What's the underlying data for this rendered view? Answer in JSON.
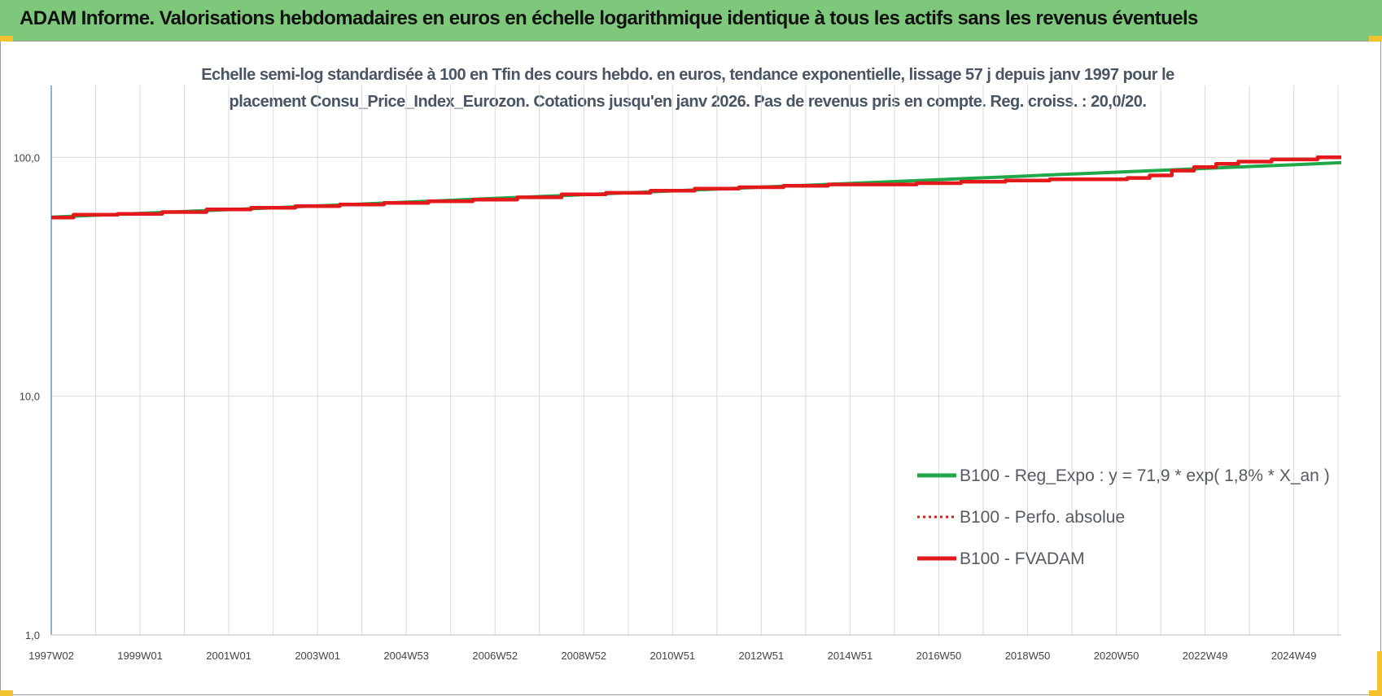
{
  "header": {
    "title": "ADAM Informe. Valorisations hebdomadaires en euros en échelle logarithmique identique à tous les actifs sans les revenus éventuels"
  },
  "chart_data": {
    "type": "line",
    "title_line1": "Echelle semi-log standardisée à 100 en Tfin des cours hebdo. en euros, tendance exponentielle, lissage 57 j depuis janv 1997 pour le",
    "title_line2": "placement Consu_Price_Index_Eurozon. Cotations jusqu'en janv 2026. Pas de revenus pris en compte. Reg. croiss. : 20,0/20.",
    "y_scale": "log",
    "ylim": [
      1,
      200
    ],
    "y_ticks": [
      1,
      10,
      100
    ],
    "y_tick_labels": [
      "1,0",
      "10,0",
      "100,0"
    ],
    "xlim": [
      1997.0,
      2026.07
    ],
    "x_tick_labels": [
      "1997W02",
      "1999W01",
      "2001W01",
      "2003W01",
      "2004W53",
      "2006W52",
      "2008W52",
      "2010W51",
      "2012W51",
      "2014W51",
      "2016W50",
      "2018W50",
      "2020W50",
      "2022W49",
      "2024W49"
    ],
    "x_tick_years": [
      1997.0,
      1999.0,
      2001.0,
      2003.0,
      2005.0,
      2007.0,
      2009.0,
      2011.0,
      2013.0,
      2015.0,
      2017.0,
      2019.0,
      2021.0,
      2023.0,
      2025.0
    ],
    "grid": true,
    "legend_position": "bottom-right",
    "series": [
      {
        "name": "B100 - Reg_Expo : y = 71,9 * exp( 1,8% *  X_an )",
        "color": "#1fa84a",
        "style": "solid",
        "x": [
          1997.0,
          2026.07
        ],
        "y": [
          56.2,
          95.0
        ]
      },
      {
        "name": "B100 - Perfo. absolue",
        "color": "#e31a1c",
        "style": "dotted",
        "x": [],
        "y": []
      },
      {
        "name": "B100 - FVADAM",
        "color": "#e31a1c",
        "style": "solid",
        "x": [
          1997.0,
          1998.0,
          1999.0,
          2000.0,
          2001.0,
          2002.0,
          2003.0,
          2004.0,
          2005.0,
          2006.0,
          2007.0,
          2008.0,
          2009.0,
          2010.0,
          2011.0,
          2012.0,
          2013.0,
          2014.0,
          2015.0,
          2016.0,
          2017.0,
          2018.0,
          2019.0,
          2020.0,
          2021.0,
          2021.5,
          2022.0,
          2022.5,
          2023.0,
          2023.5,
          2024.0,
          2025.0,
          2026.07
        ],
        "y": [
          56.0,
          57.5,
          58.0,
          59.0,
          60.5,
          61.5,
          62.5,
          63.5,
          64.5,
          65.5,
          66.5,
          68.0,
          70.0,
          71.0,
          72.5,
          74.0,
          75.0,
          76.0,
          77.0,
          77.0,
          78.0,
          79.0,
          80.0,
          81.0,
          81.0,
          82.0,
          84.0,
          88.0,
          91.0,
          94.0,
          96.0,
          98.0,
          100.0
        ]
      }
    ]
  }
}
